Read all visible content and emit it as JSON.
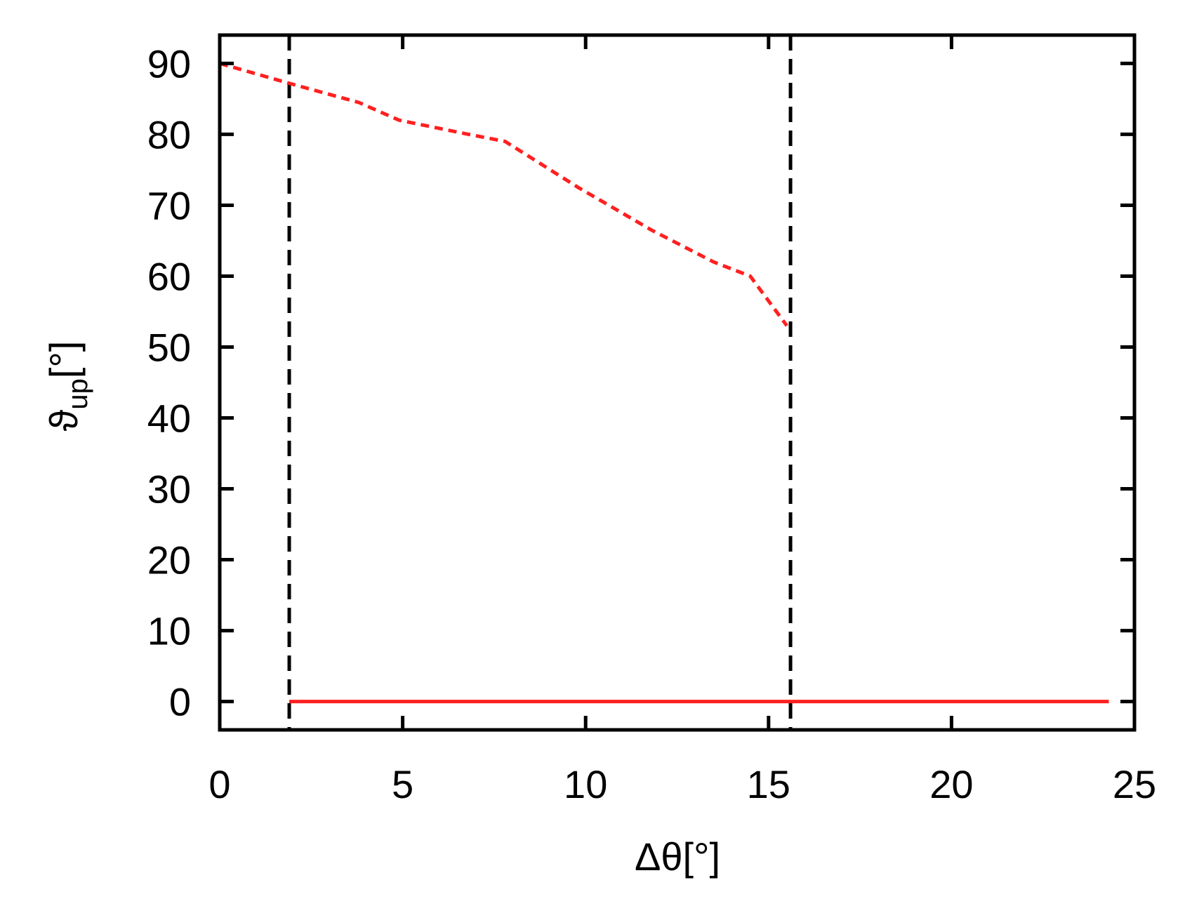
{
  "chart_data": {
    "type": "line",
    "title": "",
    "xlabel": "Δθ[°]",
    "ylabel": {
      "symbol": "ϑ",
      "subscript": "up",
      "unit": "[°]"
    },
    "xlim": [
      0,
      25
    ],
    "ylim": [
      -4,
      94
    ],
    "xticks": [
      0,
      5,
      10,
      15,
      20,
      25
    ],
    "yticks": [
      0,
      10,
      20,
      30,
      40,
      50,
      60,
      70,
      80,
      90
    ],
    "grid": false,
    "legend": "none",
    "series": [
      {
        "style": "dashed",
        "color": "#ff2020",
        "x": [
          0,
          1.9,
          3.8,
          4.9,
          6.8,
          7.8,
          9.8,
          11.8,
          13.5,
          14.5,
          15.5
        ],
        "y": [
          90,
          87.2,
          84.5,
          82,
          80,
          79,
          72.5,
          66.5,
          62,
          60,
          53
        ]
      },
      {
        "style": "solid",
        "color": "#ff2020",
        "x": [
          1.9,
          24.3
        ],
        "y": [
          0,
          0
        ]
      }
    ],
    "vertical_lines": [
      {
        "x": 1.9,
        "style": "dashed",
        "color": "#000000"
      },
      {
        "x": 15.6,
        "style": "dashed",
        "color": "#000000"
      }
    ]
  }
}
